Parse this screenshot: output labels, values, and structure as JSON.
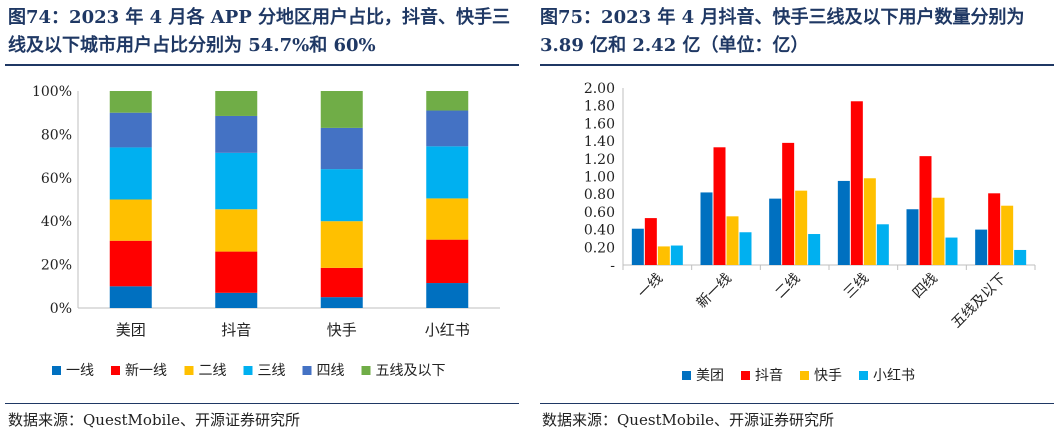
{
  "left": {
    "title": "图74：2023 年 4 月各 APP 分地区用户占比，抖音、快手三线及以下城市用户占比分别为 54.7%和 60%",
    "source": "数据来源：QuestMobile、开源证券研究所"
  },
  "right": {
    "title": "图75：2023 年 4 月抖音、快手三线及以下用户数量分别为 3.89 亿和 2.42 亿（单位：亿）",
    "source": "数据来源：QuestMobile、开源证券研究所"
  },
  "chart_data": [
    {
      "type": "bar",
      "stacked": true,
      "percent": true,
      "categories": [
        "美团",
        "抖音",
        "快手",
        "小红书"
      ],
      "ylim": [
        0,
        100
      ],
      "yticks": [
        "0%",
        "20%",
        "40%",
        "60%",
        "80%",
        "100%"
      ],
      "grid": false,
      "legend_position": "bottom",
      "series": [
        {
          "name": "一线",
          "color": "#0070c0",
          "values": [
            10,
            7,
            5,
            11.5
          ]
        },
        {
          "name": "新一线",
          "color": "#ff0000",
          "values": [
            21,
            19,
            13.5,
            20
          ]
        },
        {
          "name": "二线",
          "color": "#ffc000",
          "values": [
            19,
            19.5,
            21.5,
            19
          ]
        },
        {
          "name": "三线",
          "color": "#00b0f0",
          "values": [
            24,
            26,
            24,
            24
          ]
        },
        {
          "name": "四线",
          "color": "#4472c4",
          "values": [
            16,
            17,
            19,
            16.5
          ]
        },
        {
          "name": "五线及以下",
          "color": "#70ad47",
          "values": [
            10,
            11.5,
            17,
            9
          ]
        }
      ]
    },
    {
      "type": "bar",
      "stacked": false,
      "categories": [
        "一线",
        "新一线",
        "二线",
        "三线",
        "四线",
        "五线及以下"
      ],
      "ylim": [
        0,
        2.0
      ],
      "yticks": [
        "-",
        "0.20",
        "0.40",
        "0.60",
        "0.80",
        "1.00",
        "1.20",
        "1.40",
        "1.60",
        "1.80",
        "2.00"
      ],
      "grid": false,
      "legend_position": "bottom",
      "series": [
        {
          "name": "美团",
          "color": "#0070c0",
          "values": [
            0.41,
            0.82,
            0.75,
            0.95,
            0.63,
            0.4
          ]
        },
        {
          "name": "抖音",
          "color": "#ff0000",
          "values": [
            0.53,
            1.33,
            1.38,
            1.85,
            1.23,
            0.81
          ]
        },
        {
          "name": "快手",
          "color": "#ffc000",
          "values": [
            0.21,
            0.55,
            0.84,
            0.98,
            0.76,
            0.67
          ]
        },
        {
          "name": "小红书",
          "color": "#00b0f0",
          "values": [
            0.22,
            0.37,
            0.35,
            0.46,
            0.31,
            0.17
          ]
        }
      ]
    }
  ]
}
